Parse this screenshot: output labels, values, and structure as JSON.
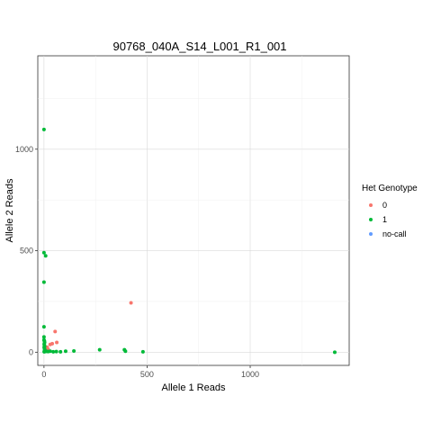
{
  "chart_data": {
    "type": "scatter",
    "title": "90768_040A_S14_L001_R1_001",
    "xlabel": "Allele 1 Reads",
    "ylabel": "Allele 2 Reads",
    "xlim": [
      -30,
      1480
    ],
    "ylim": [
      -65,
      1460
    ],
    "xticks": [
      0,
      500,
      1000
    ],
    "yticks": [
      0,
      500,
      1000
    ],
    "grid": true,
    "legend": {
      "title": "Het Genotype",
      "position": "right",
      "entries": [
        "0",
        "1",
        "no-call"
      ]
    },
    "series": [
      {
        "name": "0",
        "color": "#F8766D",
        "points": [
          [
            422,
            243
          ],
          [
            54,
            102
          ],
          [
            62,
            48
          ],
          [
            40,
            42
          ],
          [
            30,
            38
          ],
          [
            15,
            25
          ],
          [
            20,
            15
          ],
          [
            8,
            10
          ]
        ]
      },
      {
        "name": "1",
        "color": "#00BA38",
        "points": [
          [
            0,
            1097
          ],
          [
            0,
            490
          ],
          [
            8,
            475
          ],
          [
            0,
            345
          ],
          [
            0,
            125
          ],
          [
            0,
            75
          ],
          [
            0,
            60
          ],
          [
            2,
            55
          ],
          [
            3,
            48
          ],
          [
            1,
            40
          ],
          [
            2,
            35
          ],
          [
            3,
            30
          ],
          [
            1,
            25
          ],
          [
            2,
            20
          ],
          [
            3,
            15
          ],
          [
            4,
            10
          ],
          [
            2,
            5
          ],
          [
            1,
            2
          ],
          [
            5,
            3
          ],
          [
            12,
            4
          ],
          [
            20,
            3
          ],
          [
            30,
            5
          ],
          [
            45,
            2
          ],
          [
            60,
            3
          ],
          [
            80,
            2
          ],
          [
            105,
            5
          ],
          [
            145,
            6
          ],
          [
            270,
            12
          ],
          [
            390,
            12
          ],
          [
            395,
            5
          ],
          [
            480,
            2
          ],
          [
            1410,
            0
          ]
        ]
      },
      {
        "name": "no-call",
        "color": "#619CFF",
        "points": []
      }
    ]
  }
}
